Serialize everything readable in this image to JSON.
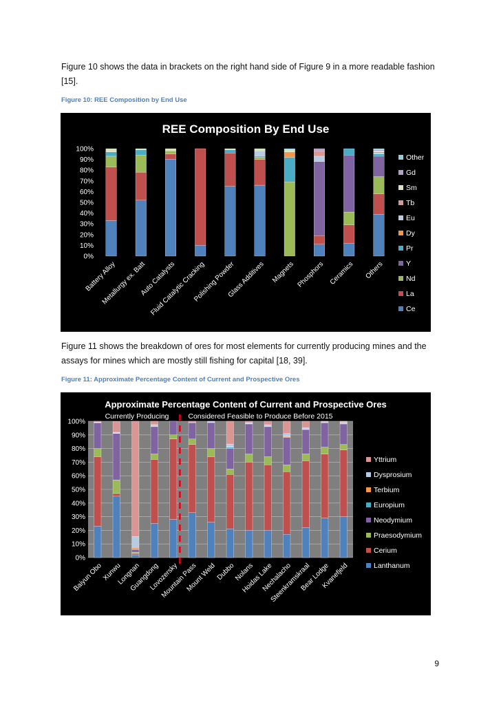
{
  "paragraphs": {
    "p1": "Figure 10 shows the data in brackets on the right hand side of Figure 9 in a more readable fashion [15].",
    "p2": "Figure 11 shows the breakdown of ores for most elements for currently producing mines and the assays for mines which are mostly still fishing for capital [18, 39]."
  },
  "captions": {
    "fig10": "Figure 10: REE Composition by End Use",
    "fig11": "Figure 11: Approximate Percentage Content of Current and Prospective Ores"
  },
  "page_number": "9",
  "chart_data": [
    {
      "type": "bar",
      "stacked": true,
      "title": "REE Composition By End Use",
      "categories": [
        "Battery Alloy",
        "Metallurgy ex. Batt",
        "Auto Catalysts",
        "Fluid Catalytic Cracking",
        "Polishing Powder",
        "Glass Additives",
        "Magnets",
        "Phosphors",
        "Ceramics",
        "Others"
      ],
      "yticks": [
        "0%",
        "10%",
        "20%",
        "30%",
        "40%",
        "50%",
        "60%",
        "70%",
        "80%",
        "90%",
        "100%"
      ],
      "ylim": [
        0,
        100
      ],
      "legend_position": "right",
      "series": [
        {
          "name": "Ce",
          "color": "#4f81bd",
          "values": [
            33,
            52,
            90,
            10,
            65,
            66,
            0,
            11,
            12,
            39
          ]
        },
        {
          "name": "La",
          "color": "#c0504d",
          "values": [
            50,
            26,
            5,
            90,
            31,
            24,
            0,
            8,
            17,
            19
          ]
        },
        {
          "name": "Nd",
          "color": "#9bbb59",
          "values": [
            10,
            16,
            3,
            0,
            0,
            2,
            69,
            0,
            12,
            16
          ]
        },
        {
          "name": "Y",
          "color": "#8064a2",
          "values": [
            0,
            0,
            0,
            0,
            0,
            0,
            0,
            69,
            53,
            19
          ]
        },
        {
          "name": "Pr",
          "color": "#4bacc6",
          "values": [
            4,
            5,
            0,
            0,
            3,
            1,
            23,
            0,
            6,
            2
          ]
        },
        {
          "name": "Dy",
          "color": "#f79646",
          "values": [
            0,
            0,
            0,
            0,
            0,
            0,
            5,
            0,
            0,
            0
          ]
        },
        {
          "name": "Eu",
          "color": "#b7cce4",
          "values": [
            0,
            0,
            0,
            0,
            0,
            5,
            0,
            5,
            0,
            1
          ]
        },
        {
          "name": "Tb",
          "color": "#d99694",
          "values": [
            0,
            0,
            0,
            0,
            0,
            0,
            0,
            5,
            0,
            1
          ]
        },
        {
          "name": "Sm",
          "color": "#d7e4bd",
          "values": [
            3,
            1,
            2,
            0,
            1,
            2,
            2,
            0,
            0,
            1
          ]
        },
        {
          "name": "Gd",
          "color": "#b3a2c7",
          "values": [
            0,
            0,
            0,
            0,
            0,
            0,
            0,
            2,
            0,
            1
          ]
        },
        {
          "name": "Other",
          "color": "#93cddd",
          "values": [
            0,
            0,
            0,
            0,
            0,
            0,
            1,
            0,
            0,
            1
          ]
        }
      ]
    },
    {
      "type": "bar",
      "stacked": true,
      "title": "Approximate Percentage Content of Current and Prospective Ores",
      "annotations": [
        "Currently Producing",
        "Considered Feasible to Produce Before 2015"
      ],
      "divider_after_index": 4,
      "categories": [
        "Baiyun Obo",
        "Xunwu",
        "Longnan",
        "Guangdong",
        "Lovozersky",
        "Mountain Pass",
        "Mount Weld",
        "Dubbo",
        "Nolans",
        "Hoidas Lake",
        "Nechalacho",
        "Steenkramskraal",
        "Bear Lodge",
        "Kvanefjeld"
      ],
      "yticks": [
        "0%",
        "10%",
        "20%",
        "30%",
        "40%",
        "50%",
        "60%",
        "70%",
        "80%",
        "90%",
        "100%"
      ],
      "ylim": [
        0,
        100
      ],
      "legend_position": "right",
      "series": [
        {
          "name": "Lanthanum",
          "color": "#4f81bd",
          "values": [
            23,
            45,
            2,
            25,
            28,
            33,
            26,
            21,
            20,
            20,
            17,
            22,
            29,
            30
          ]
        },
        {
          "name": "Cerium",
          "color": "#c0504d",
          "values": [
            51,
            2,
            1,
            47,
            59,
            50,
            48,
            40,
            50,
            48,
            46,
            49,
            47,
            49
          ]
        },
        {
          "name": "Praesodymium",
          "color": "#9bbb59",
          "values": [
            6,
            10,
            1,
            4,
            3,
            4,
            6,
            4,
            6,
            6,
            5,
            5,
            5,
            4
          ]
        },
        {
          "name": "Neodymium",
          "color": "#8064a2",
          "values": [
            19,
            34,
            2,
            20,
            10,
            12,
            19,
            15,
            22,
            22,
            20,
            18,
            18,
            15
          ]
        },
        {
          "name": "Europium",
          "color": "#4bacc6",
          "values": [
            0.2,
            0.3,
            0.5,
            0.5,
            0,
            0.1,
            0.4,
            1,
            0.4,
            0.4,
            0.5,
            0.2,
            0.2,
            0.5
          ]
        },
        {
          "name": "Terbium",
          "color": "#f79646",
          "values": [
            0.1,
            0.1,
            1,
            0.1,
            0,
            0,
            0.1,
            0.3,
            0.1,
            0.1,
            0.5,
            0.2,
            0,
            0.2
          ]
        },
        {
          "name": "Dysprosium",
          "color": "#b7cce4",
          "values": [
            0.1,
            0.5,
            8,
            1,
            0,
            0,
            0.5,
            2,
            0.5,
            1,
            2,
            1,
            0.5,
            1
          ]
        },
        {
          "name": "Yttrium",
          "color": "#d99694",
          "values": [
            0.6,
            8,
            84.5,
            2.4,
            0,
            0.9,
            0,
            16.7,
            1,
            2.5,
            9,
            4.6,
            0.3,
            0.3
          ]
        }
      ]
    }
  ]
}
